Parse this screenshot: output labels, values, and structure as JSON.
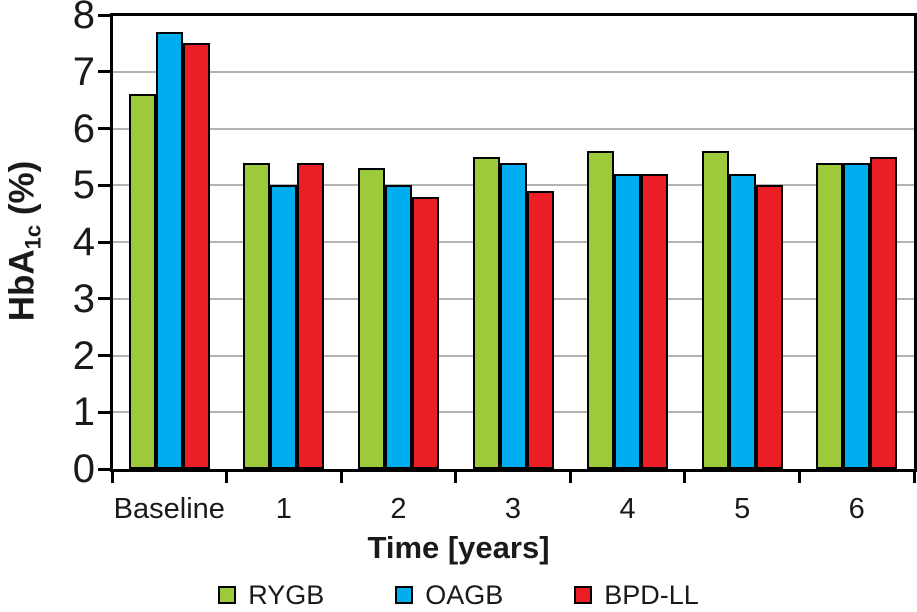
{
  "chart_data": {
    "type": "bar",
    "title": "",
    "xlabel": "Time [years]",
    "ylabel": "HbA1c (%)",
    "ylabel_parts": {
      "pre": "HbA",
      "sub": "1c",
      "post": " (%)"
    },
    "categories": [
      "Baseline",
      "1",
      "2",
      "3",
      "4",
      "5",
      "6"
    ],
    "series": [
      {
        "name": "RYGB",
        "color": "#9DCA3A",
        "values": [
          6.6,
          5.4,
          5.3,
          5.5,
          5.6,
          5.6,
          5.4
        ]
      },
      {
        "name": "OAGB",
        "color": "#00AEEF",
        "values": [
          7.7,
          5.0,
          5.0,
          5.4,
          5.2,
          5.2,
          5.4
        ]
      },
      {
        "name": "BPD-LL",
        "color": "#EC1E25",
        "values": [
          7.5,
          5.4,
          4.8,
          4.9,
          5.2,
          5.0,
          5.5
        ]
      }
    ],
    "ylim": [
      0,
      8
    ],
    "yticks": [
      0,
      1,
      2,
      3,
      4,
      5,
      6,
      7,
      8
    ],
    "grid": true,
    "legend_position": "bottom",
    "colors": {
      "axis": "#000000",
      "grid": "#b3b3b3",
      "background": "#ffffff",
      "text": "#1a1a1a"
    }
  }
}
